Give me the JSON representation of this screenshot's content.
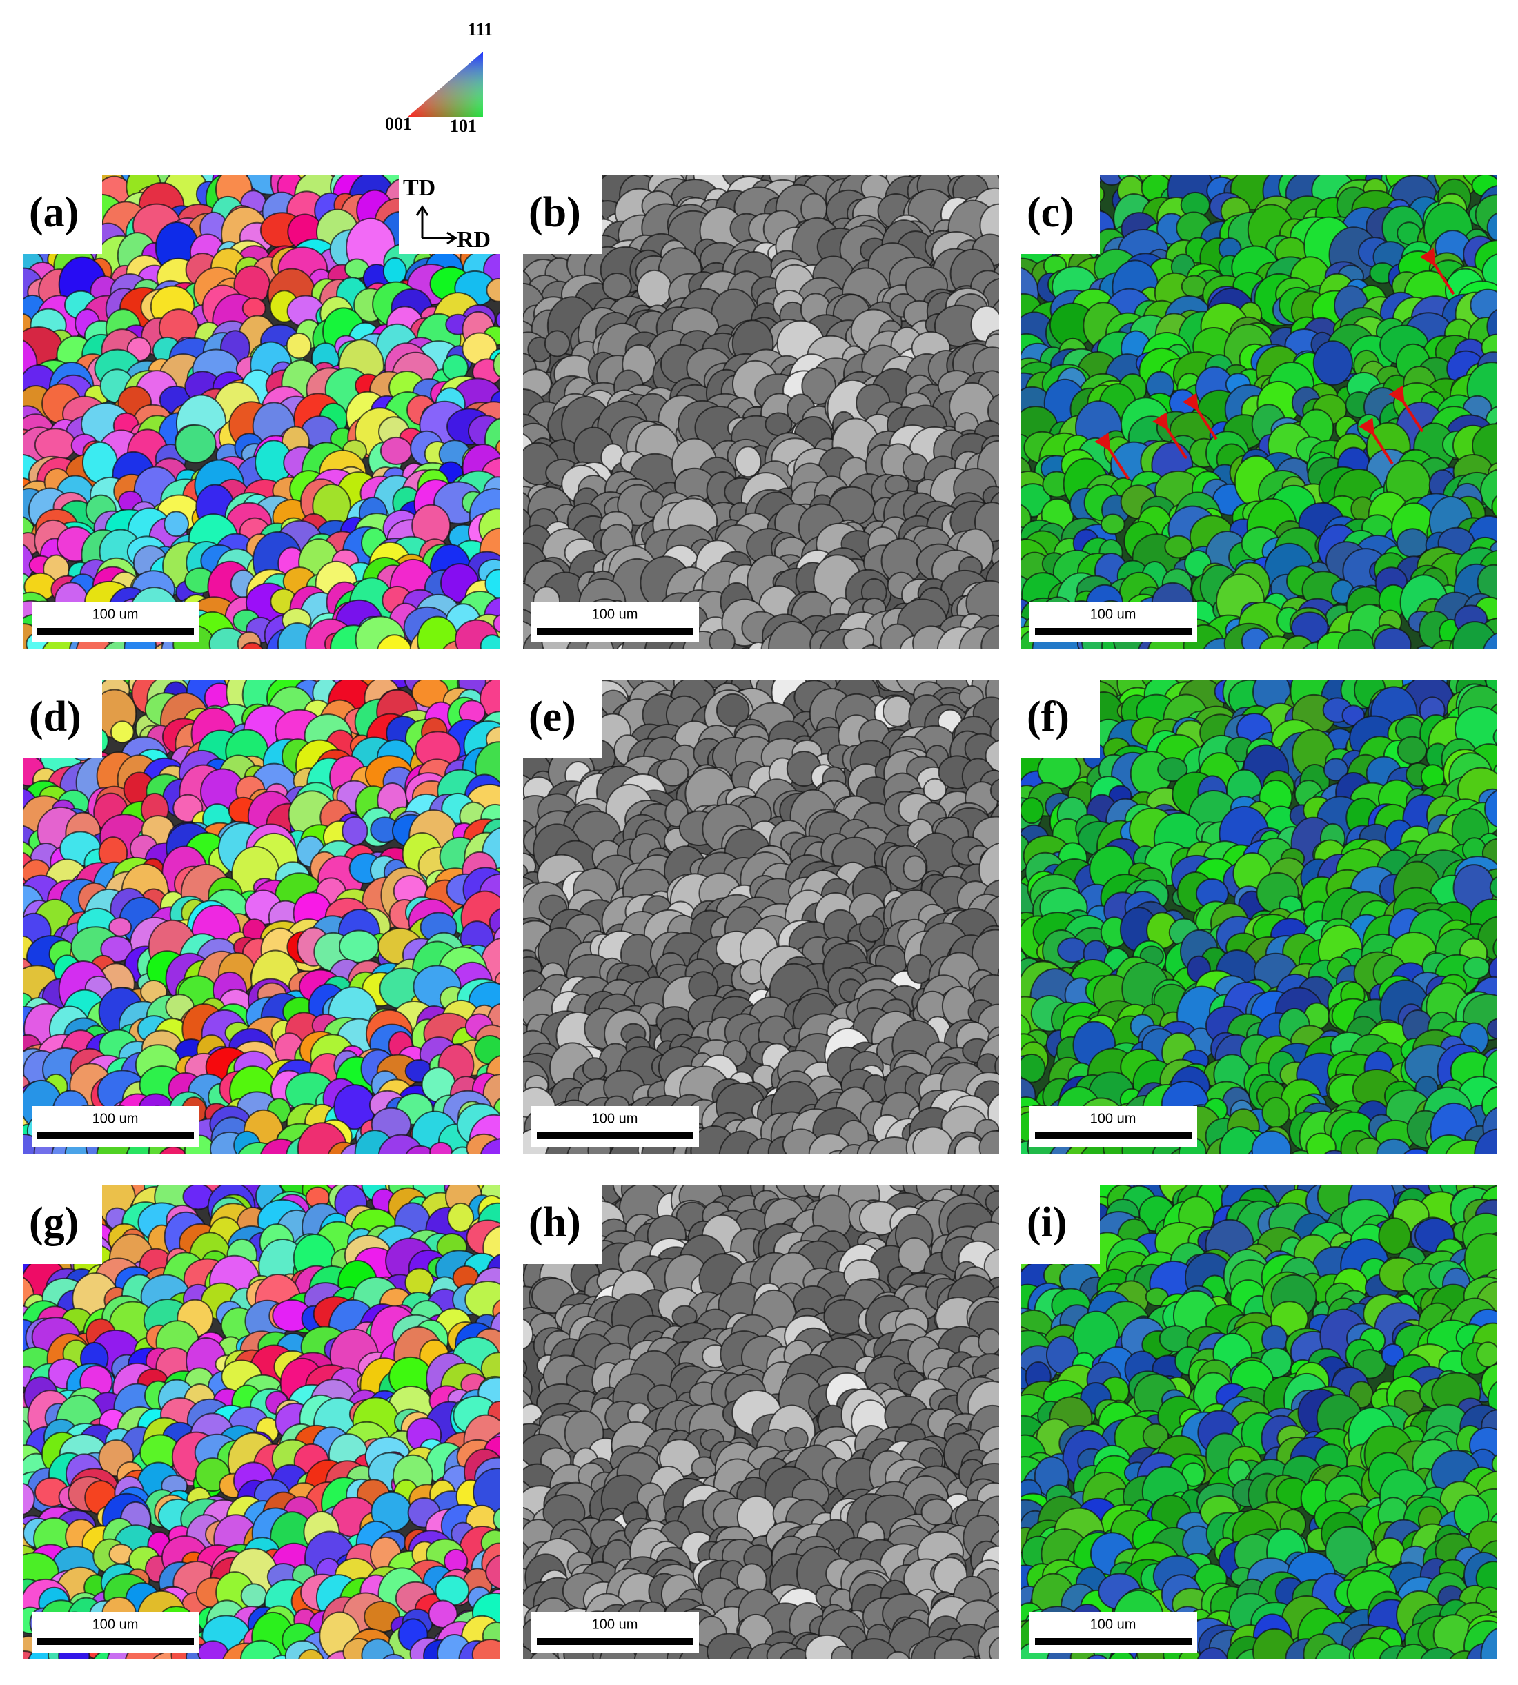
{
  "legend": {
    "labels": [
      "111",
      "001",
      "101"
    ]
  },
  "axes": {
    "td": "TD",
    "rd": "RD"
  },
  "panels": [
    {
      "label": "(a)",
      "scale_bar": "100 um"
    },
    {
      "label": "(b)",
      "scale_bar": "100 um"
    },
    {
      "label": "(c)",
      "scale_bar": "100 um"
    },
    {
      "label": "(d)",
      "scale_bar": "100 um"
    },
    {
      "label": "(e)",
      "scale_bar": "100 um"
    },
    {
      "label": "(f)",
      "scale_bar": "100 um"
    },
    {
      "label": "(g)",
      "scale_bar": "100 um"
    },
    {
      "label": "(h)",
      "scale_bar": "100 um"
    },
    {
      "label": "(i)",
      "scale_bar": "100 um"
    }
  ]
}
